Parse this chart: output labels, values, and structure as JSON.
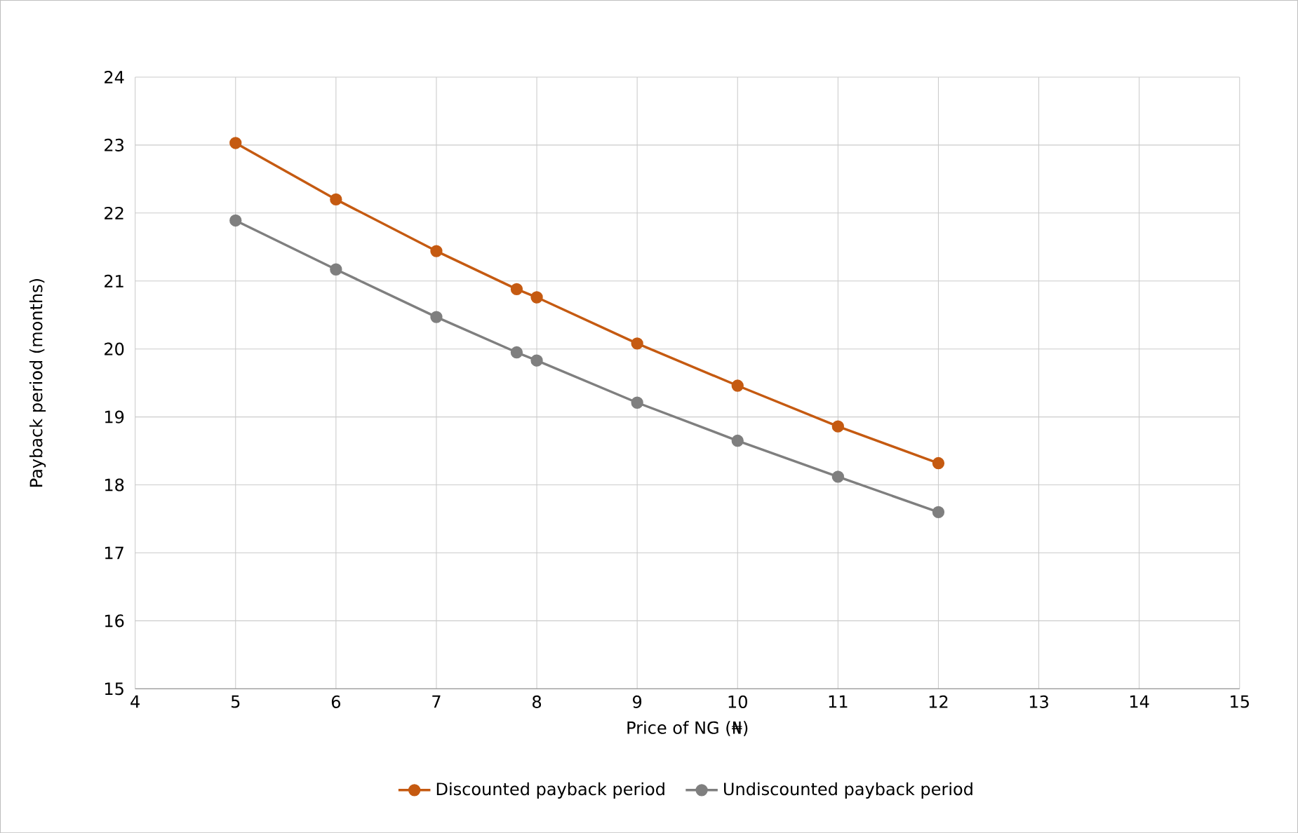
{
  "chart_data": {
    "type": "line",
    "xlabel": "Price of NG (₦)",
    "ylabel": "Payback period (months)",
    "xlim": [
      4,
      15
    ],
    "xticks": [
      4,
      5,
      6,
      7,
      8,
      9,
      10,
      11,
      12,
      13,
      14,
      15
    ],
    "ylim": [
      15,
      24
    ],
    "yticks": [
      15,
      16,
      17,
      18,
      19,
      20,
      21,
      22,
      23,
      24
    ],
    "grid": true,
    "legend": "bottom",
    "marker": "circle",
    "line_style": "solid",
    "series": [
      {
        "name": "Discounted payback period",
        "color": "#c55a11",
        "x": [
          5,
          6,
          7,
          7.8,
          8,
          9,
          10,
          11,
          12
        ],
        "values": [
          23.03,
          22.2,
          21.44,
          20.88,
          20.76,
          20.08,
          19.46,
          18.86,
          18.32
        ]
      },
      {
        "name": "Undiscounted payback period",
        "color": "#7f7f7f",
        "x": [
          5,
          6,
          7,
          7.8,
          8,
          9,
          10,
          11,
          12
        ],
        "values": [
          21.89,
          21.17,
          20.47,
          19.95,
          19.83,
          19.21,
          18.65,
          18.12,
          17.6
        ]
      }
    ]
  }
}
